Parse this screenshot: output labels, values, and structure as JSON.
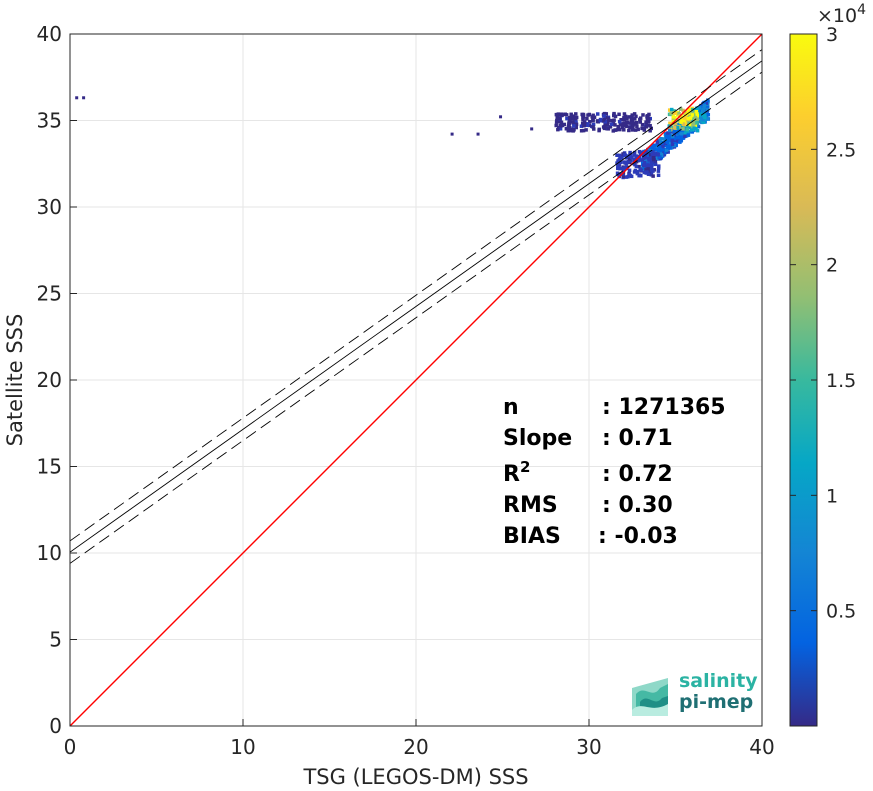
{
  "chart_data": {
    "type": "heatmap",
    "xlabel": "TSG (LEGOS-DM) SSS",
    "ylabel": "Satellite SSS",
    "xlim": [
      0,
      40
    ],
    "ylim": [
      0,
      40
    ],
    "xticks": [
      "0",
      "10",
      "20",
      "30",
      "40"
    ],
    "yticks": [
      "0",
      "5",
      "10",
      "15",
      "20",
      "25",
      "30",
      "35",
      "40"
    ],
    "grid": true,
    "colorbar": {
      "range": [
        0,
        30000
      ],
      "exponent_label": "×10",
      "exponent_power": "4",
      "ticks": [
        {
          "value": 0.5,
          "label": "0.5"
        },
        {
          "value": 1,
          "label": "1"
        },
        {
          "value": 1.5,
          "label": "1.5"
        },
        {
          "value": 2,
          "label": "2"
        },
        {
          "value": 2.5,
          "label": "2.5"
        },
        {
          "value": 3,
          "label": "3"
        }
      ]
    },
    "identity_line": {
      "color": "#ff0000",
      "from": [
        0,
        0
      ],
      "to": [
        40,
        40
      ]
    },
    "regression": {
      "slope": 0.71,
      "intercept": 10.05,
      "band": 0.65
    },
    "density_clusters": [
      {
        "x": [
          33.0,
          36.8
        ],
        "y": [
          33.6,
          36.6
        ],
        "level": 0.35
      },
      {
        "x": [
          28.0,
          33.5
        ],
        "y": [
          34.5,
          35.5
        ],
        "level": 0.06
      },
      {
        "x": [
          31.5,
          34.0
        ],
        "y": [
          31.8,
          33.3
        ],
        "level": 0.12
      },
      {
        "x": [
          34.5,
          36.2
        ],
        "y": [
          34.5,
          35.8
        ],
        "level": 0.9
      }
    ],
    "stats": [
      {
        "key": "n",
        "sep": ":",
        "value": "1271365"
      },
      {
        "key": "Slope",
        "sep": ":",
        "value": "0.71"
      },
      {
        "key": "R",
        "sup": "2",
        "sep": ":",
        "value": "0.72"
      },
      {
        "key": "RMS",
        "sep": ":",
        "value": "0.30"
      },
      {
        "key": "BIAS",
        "sep": ":",
        "value": "-0.03"
      }
    ]
  },
  "logo": {
    "line1": "salinity",
    "line2": "pi-mep",
    "color1": "#2bb3a3",
    "color2": "#1f6f73"
  }
}
